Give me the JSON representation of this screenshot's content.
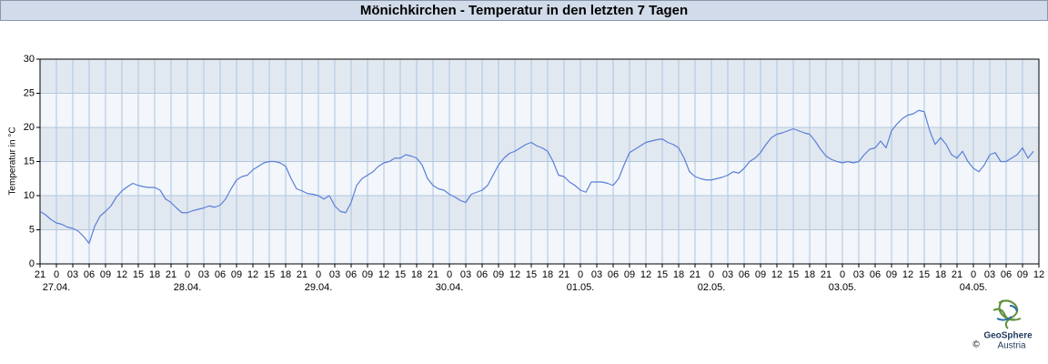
{
  "chart_data": {
    "type": "line",
    "title": "Mönichkirchen - Temperatur in den letzten 7 Tagen",
    "ylabel": "Temperatur in °C",
    "color": "#5a7fd8",
    "grid": true,
    "ylim": [
      0,
      30
    ],
    "yticks": [
      0,
      5,
      10,
      15,
      20,
      25,
      30
    ],
    "xlim": [
      "26.04. 21:00",
      "04.05. 12:00"
    ],
    "xticks": [
      {
        "value": "26.04. 21:00",
        "label": "21"
      },
      {
        "value": "27.04. 00:00",
        "label": "0"
      },
      {
        "value": "27.04. 03:00",
        "label": "03"
      },
      {
        "value": "27.04. 06:00",
        "label": "06"
      },
      {
        "value": "27.04. 09:00",
        "label": "09"
      },
      {
        "value": "27.04. 12:00",
        "label": "12"
      },
      {
        "value": "27.04. 15:00",
        "label": "15"
      },
      {
        "value": "27.04. 18:00",
        "label": "18"
      },
      {
        "value": "27.04. 21:00",
        "label": "21"
      },
      {
        "value": "28.04. 00:00",
        "label": "0"
      },
      {
        "value": "28.04. 03:00",
        "label": "03"
      },
      {
        "value": "28.04. 06:00",
        "label": "06"
      },
      {
        "value": "28.04. 09:00",
        "label": "09"
      },
      {
        "value": "28.04. 12:00",
        "label": "12"
      },
      {
        "value": "28.04. 15:00",
        "label": "15"
      },
      {
        "value": "28.04. 18:00",
        "label": "18"
      },
      {
        "value": "28.04. 21:00",
        "label": "21"
      },
      {
        "value": "29.04. 00:00",
        "label": "0"
      },
      {
        "value": "29.04. 03:00",
        "label": "03"
      },
      {
        "value": "29.04. 06:00",
        "label": "06"
      },
      {
        "value": "29.04. 09:00",
        "label": "09"
      },
      {
        "value": "29.04. 12:00",
        "label": "12"
      },
      {
        "value": "29.04. 15:00",
        "label": "15"
      },
      {
        "value": "29.04. 18:00",
        "label": "18"
      },
      {
        "value": "29.04. 21:00",
        "label": "21"
      },
      {
        "value": "30.04. 00:00",
        "label": "0"
      },
      {
        "value": "30.04. 03:00",
        "label": "03"
      },
      {
        "value": "30.04. 06:00",
        "label": "06"
      },
      {
        "value": "30.04. 09:00",
        "label": "09"
      },
      {
        "value": "30.04. 12:00",
        "label": "12"
      },
      {
        "value": "30.04. 15:00",
        "label": "15"
      },
      {
        "value": "30.04. 18:00",
        "label": "18"
      },
      {
        "value": "30.04. 21:00",
        "label": "21"
      },
      {
        "value": "01.05. 00:00",
        "label": "0"
      },
      {
        "value": "01.05. 03:00",
        "label": "03"
      },
      {
        "value": "01.05. 06:00",
        "label": "06"
      },
      {
        "value": "01.05. 09:00",
        "label": "09"
      },
      {
        "value": "01.05. 12:00",
        "label": "12"
      },
      {
        "value": "01.05. 15:00",
        "label": "15"
      },
      {
        "value": "01.05. 18:00",
        "label": "18"
      },
      {
        "value": "01.05. 21:00",
        "label": "21"
      },
      {
        "value": "02.05. 00:00",
        "label": "0"
      },
      {
        "value": "02.05. 03:00",
        "label": "03"
      },
      {
        "value": "02.05. 06:00",
        "label": "06"
      },
      {
        "value": "02.05. 09:00",
        "label": "09"
      },
      {
        "value": "02.05. 12:00",
        "label": "12"
      },
      {
        "value": "02.05. 15:00",
        "label": "15"
      },
      {
        "value": "02.05. 18:00",
        "label": "18"
      },
      {
        "value": "02.05. 21:00",
        "label": "21"
      },
      {
        "value": "03.05. 00:00",
        "label": "0"
      },
      {
        "value": "03.05. 03:00",
        "label": "03"
      },
      {
        "value": "03.05. 06:00",
        "label": "06"
      },
      {
        "value": "03.05. 09:00",
        "label": "09"
      },
      {
        "value": "03.05. 12:00",
        "label": "12"
      },
      {
        "value": "03.05. 15:00",
        "label": "15"
      },
      {
        "value": "03.05. 18:00",
        "label": "18"
      },
      {
        "value": "03.05. 21:00",
        "label": "21"
      },
      {
        "value": "04.05. 00:00",
        "label": "0"
      },
      {
        "value": "04.05. 03:00",
        "label": "03"
      },
      {
        "value": "04.05. 06:00",
        "label": "06"
      },
      {
        "value": "04.05. 09:00",
        "label": "09"
      },
      {
        "value": "04.05. 12:00",
        "label": "12"
      }
    ],
    "date_labels": [
      {
        "value": "27.04. 00:00",
        "label": "27.04."
      },
      {
        "value": "28.04. 00:00",
        "label": "28.04."
      },
      {
        "value": "29.04. 00:00",
        "label": "29.04."
      },
      {
        "value": "30.04. 00:00",
        "label": "30.04."
      },
      {
        "value": "01.05. 00:00",
        "label": "01.05."
      },
      {
        "value": "02.05. 00:00",
        "label": "02.05."
      },
      {
        "value": "03.05. 00:00",
        "label": "03.05."
      },
      {
        "value": "04.05. 00:00",
        "label": "04.05."
      }
    ],
    "x": [
      "26.04. 21:00",
      "26.04. 22:00",
      "26.04. 23:00",
      "27.04. 00:00",
      "27.04. 01:00",
      "27.04. 02:00",
      "27.04. 03:00",
      "27.04. 04:00",
      "27.04. 05:00",
      "27.04. 06:00",
      "27.04. 07:00",
      "27.04. 08:00",
      "27.04. 09:00",
      "27.04. 10:00",
      "27.04. 11:00",
      "27.04. 12:00",
      "27.04. 13:00",
      "27.04. 14:00",
      "27.04. 15:00",
      "27.04. 16:00",
      "27.04. 17:00",
      "27.04. 18:00",
      "27.04. 19:00",
      "27.04. 20:00",
      "27.04. 21:00",
      "27.04. 22:00",
      "27.04. 23:00",
      "28.04. 00:00",
      "28.04. 01:00",
      "28.04. 02:00",
      "28.04. 03:00",
      "28.04. 04:00",
      "28.04. 05:00",
      "28.04. 06:00",
      "28.04. 07:00",
      "28.04. 08:00",
      "28.04. 09:00",
      "28.04. 10:00",
      "28.04. 11:00",
      "28.04. 12:00",
      "28.04. 13:00",
      "28.04. 14:00",
      "28.04. 15:00",
      "28.04. 16:00",
      "28.04. 17:00",
      "28.04. 18:00",
      "28.04. 19:00",
      "28.04. 20:00",
      "28.04. 21:00",
      "28.04. 22:00",
      "28.04. 23:00",
      "29.04. 00:00",
      "29.04. 01:00",
      "29.04. 02:00",
      "29.04. 03:00",
      "29.04. 04:00",
      "29.04. 05:00",
      "29.04. 06:00",
      "29.04. 07:00",
      "29.04. 08:00",
      "29.04. 09:00",
      "29.04. 10:00",
      "29.04. 11:00",
      "29.04. 12:00",
      "29.04. 13:00",
      "29.04. 14:00",
      "29.04. 15:00",
      "29.04. 16:00",
      "29.04. 17:00",
      "29.04. 18:00",
      "29.04. 19:00",
      "29.04. 20:00",
      "29.04. 21:00",
      "29.04. 22:00",
      "29.04. 23:00",
      "30.04. 00:00",
      "30.04. 01:00",
      "30.04. 02:00",
      "30.04. 03:00",
      "30.04. 04:00",
      "30.04. 05:00",
      "30.04. 06:00",
      "30.04. 07:00",
      "30.04. 08:00",
      "30.04. 09:00",
      "30.04. 10:00",
      "30.04. 11:00",
      "30.04. 12:00",
      "30.04. 13:00",
      "30.04. 14:00",
      "30.04. 15:00",
      "30.04. 16:00",
      "30.04. 17:00",
      "30.04. 18:00",
      "30.04. 19:00",
      "30.04. 20:00",
      "30.04. 21:00",
      "30.04. 22:00",
      "30.04. 23:00",
      "01.05. 00:00",
      "01.05. 01:00",
      "01.05. 02:00",
      "01.05. 03:00",
      "01.05. 04:00",
      "01.05. 05:00",
      "01.05. 06:00",
      "01.05. 07:00",
      "01.05. 08:00",
      "01.05. 09:00",
      "01.05. 10:00",
      "01.05. 11:00",
      "01.05. 12:00",
      "01.05. 13:00",
      "01.05. 14:00",
      "01.05. 15:00",
      "01.05. 16:00",
      "01.05. 17:00",
      "01.05. 18:00",
      "01.05. 19:00",
      "01.05. 20:00",
      "01.05. 21:00",
      "01.05. 22:00",
      "01.05. 23:00",
      "02.05. 00:00",
      "02.05. 01:00",
      "02.05. 02:00",
      "02.05. 03:00",
      "02.05. 04:00",
      "02.05. 05:00",
      "02.05. 06:00",
      "02.05. 07:00",
      "02.05. 08:00",
      "02.05. 09:00",
      "02.05. 10:00",
      "02.05. 11:00",
      "02.05. 12:00",
      "02.05. 13:00",
      "02.05. 14:00",
      "02.05. 15:00",
      "02.05. 16:00",
      "02.05. 17:00",
      "02.05. 18:00",
      "02.05. 19:00",
      "02.05. 20:00",
      "02.05. 21:00",
      "02.05. 22:00",
      "02.05. 23:00",
      "03.05. 00:00",
      "03.05. 01:00",
      "03.05. 02:00",
      "03.05. 03:00",
      "03.05. 04:00",
      "03.05. 05:00",
      "03.05. 06:00",
      "03.05. 07:00",
      "03.05. 08:00",
      "03.05. 09:00",
      "03.05. 10:00",
      "03.05. 11:00",
      "03.05. 12:00",
      "03.05. 13:00",
      "03.05. 14:00",
      "03.05. 15:00",
      "03.05. 16:00",
      "03.05. 17:00",
      "03.05. 18:00",
      "03.05. 19:00",
      "03.05. 20:00",
      "03.05. 21:00",
      "03.05. 22:00",
      "03.05. 23:00",
      "04.05. 00:00",
      "04.05. 01:00",
      "04.05. 02:00",
      "04.05. 03:00",
      "04.05. 04:00",
      "04.05. 05:00",
      "04.05. 06:00",
      "04.05. 07:00",
      "04.05. 08:00",
      "04.05. 09:00",
      "04.05. 10:00",
      "04.05. 11:00"
    ],
    "values": [
      7.7,
      7.2,
      6.5,
      6.0,
      5.8,
      5.4,
      5.2,
      4.8,
      4.0,
      3.0,
      5.5,
      7.0,
      7.7,
      8.5,
      9.8,
      10.7,
      11.3,
      11.8,
      11.5,
      11.3,
      11.2,
      11.2,
      10.8,
      9.5,
      9.0,
      8.2,
      7.5,
      7.5,
      7.8,
      8.0,
      8.2,
      8.5,
      8.3,
      8.6,
      9.5,
      11.0,
      12.3,
      12.8,
      13.0,
      13.8,
      14.3,
      14.8,
      15.0,
      15.0,
      14.8,
      14.3,
      12.5,
      11.0,
      10.7,
      10.3,
      10.2,
      10.0,
      9.5,
      10.0,
      8.5,
      7.7,
      7.5,
      9.0,
      11.5,
      12.5,
      13.0,
      13.5,
      14.3,
      14.8,
      15.0,
      15.5,
      15.5,
      16.0,
      15.8,
      15.5,
      14.5,
      12.5,
      11.5,
      11.0,
      10.8,
      10.2,
      9.8,
      9.3,
      9.0,
      10.2,
      10.5,
      10.8,
      11.5,
      13.0,
      14.5,
      15.5,
      16.2,
      16.5,
      17.0,
      17.5,
      17.8,
      17.3,
      17.0,
      16.5,
      15.0,
      13.0,
      12.8,
      12.0,
      11.5,
      10.8,
      10.5,
      12.0,
      12.0,
      12.0,
      11.8,
      11.5,
      12.5,
      14.5,
      16.3,
      16.8,
      17.3,
      17.8,
      18.0,
      18.2,
      18.3,
      17.8,
      17.5,
      17.0,
      15.5,
      13.5,
      12.8,
      12.5,
      12.3,
      12.3,
      12.5,
      12.7,
      13.0,
      13.5,
      13.3,
      14.0,
      15.0,
      15.5,
      16.3,
      17.5,
      18.5,
      19.0,
      19.2,
      19.5,
      19.8,
      19.5,
      19.2,
      19.0,
      18.0,
      16.8,
      15.8,
      15.3,
      15.0,
      14.8,
      15.0,
      14.8,
      15.0,
      16.0,
      16.8,
      17.0,
      18.0,
      17.0,
      19.5,
      20.5,
      21.3,
      21.8,
      22.0,
      22.5,
      22.3,
      19.5,
      17.5,
      18.5,
      17.5,
      16.0,
      15.5,
      16.5,
      15.0,
      14.0,
      13.5,
      14.5,
      16.0,
      16.3,
      15.0,
      15.0,
      15.5,
      16.0,
      17.0,
      15.5,
      16.5
    ]
  },
  "logo": {
    "name": "GeoSphere",
    "sub": "Austria",
    "copyright": "©"
  }
}
